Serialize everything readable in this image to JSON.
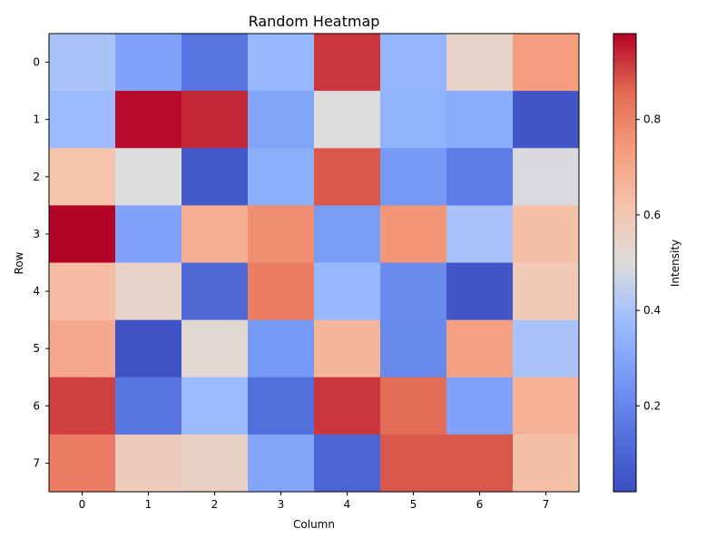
{
  "chart_data": {
    "type": "heatmap",
    "title": "Random Heatmap",
    "xlabel": "Column",
    "ylabel": "Row",
    "x_tick_labels": [
      "0",
      "1",
      "2",
      "3",
      "4",
      "5",
      "6",
      "7"
    ],
    "y_tick_labels": [
      "0",
      "1",
      "2",
      "3",
      "4",
      "5",
      "6",
      "7"
    ],
    "values": [
      [
        0.4,
        0.29,
        0.15,
        0.36,
        0.92,
        0.35,
        0.55,
        0.73
      ],
      [
        0.37,
        0.97,
        0.94,
        0.3,
        0.5,
        0.34,
        0.32,
        0.05
      ],
      [
        0.62,
        0.5,
        0.06,
        0.33,
        0.88,
        0.26,
        0.17,
        0.49
      ],
      [
        0.98,
        0.29,
        0.68,
        0.77,
        0.27,
        0.75,
        0.4,
        0.63
      ],
      [
        0.64,
        0.55,
        0.11,
        0.81,
        0.36,
        0.22,
        0.05,
        0.59
      ],
      [
        0.7,
        0.04,
        0.52,
        0.26,
        0.66,
        0.21,
        0.72,
        0.4
      ],
      [
        0.91,
        0.15,
        0.37,
        0.13,
        0.92,
        0.85,
        0.29,
        0.67
      ],
      [
        0.81,
        0.58,
        0.56,
        0.3,
        0.1,
        0.88,
        0.88,
        0.63
      ]
    ],
    "colormap": "coolwarm",
    "value_range": [
      0.02,
      0.98
    ],
    "colorbar": {
      "label": "Intensity",
      "ticks": [
        0.2,
        0.4,
        0.6,
        0.8
      ],
      "tick_labels": [
        "0.2",
        "0.4",
        "0.6",
        "0.8"
      ],
      "placement": "right"
    },
    "grid": false,
    "colors": {
      "low": "#3b4cc0",
      "mid": "#dddddd",
      "high": "#b40426"
    }
  }
}
